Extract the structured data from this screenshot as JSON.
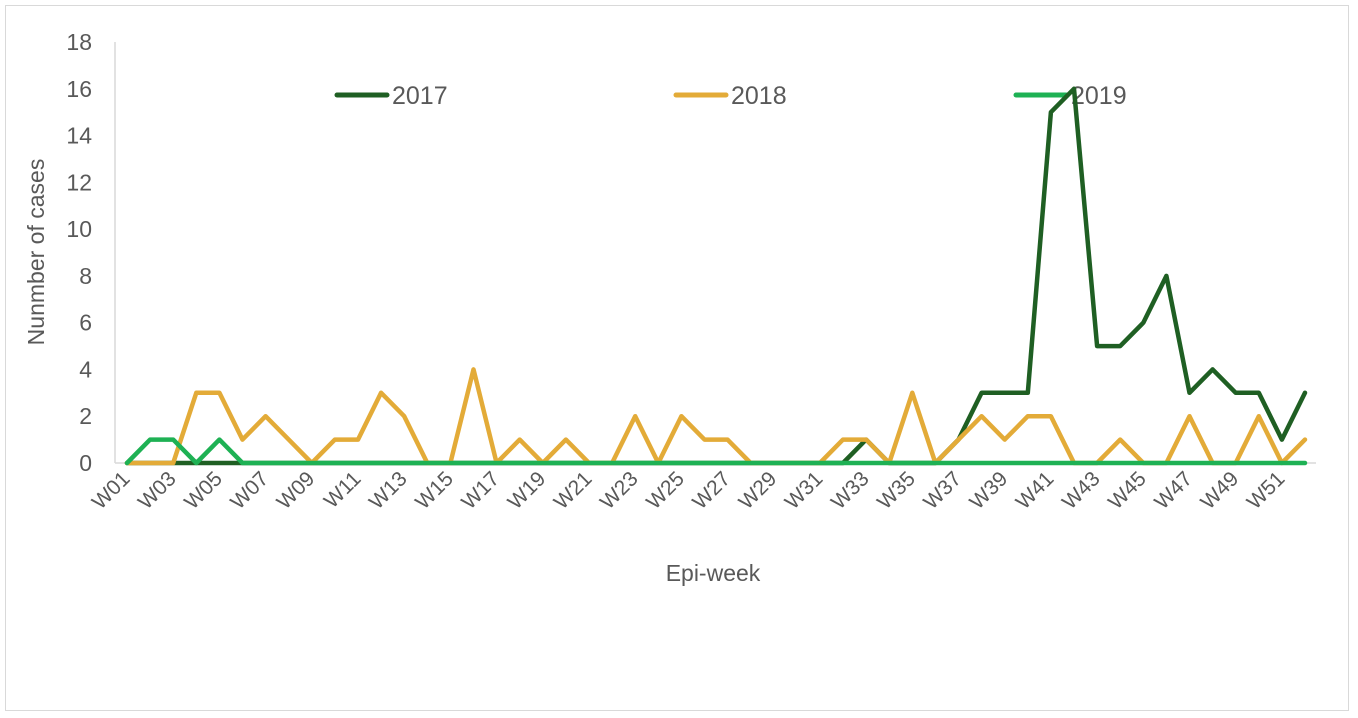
{
  "chart_data": {
    "type": "line",
    "title": "",
    "xlabel": "Epi-week",
    "ylabel": "Nunmber of cases",
    "ylim": [
      0,
      18
    ],
    "yticks": [
      0,
      2,
      4,
      6,
      8,
      10,
      12,
      14,
      16,
      18
    ],
    "grid": false,
    "legend_position": "top",
    "x": [
      "W01",
      "W02",
      "W03",
      "W04",
      "W05",
      "W06",
      "W07",
      "W08",
      "W09",
      "W10",
      "W11",
      "W12",
      "W13",
      "W14",
      "W15",
      "W16",
      "W17",
      "W18",
      "W19",
      "W20",
      "W21",
      "W22",
      "W23",
      "W24",
      "W25",
      "W26",
      "W27",
      "W28",
      "W29",
      "W30",
      "W31",
      "W32",
      "W33",
      "W34",
      "W35",
      "W36",
      "W37",
      "W38",
      "W39",
      "W40",
      "W41",
      "W42",
      "W43",
      "W44",
      "W45",
      "W46",
      "W47",
      "W48",
      "W49",
      "W50",
      "W51",
      "W52"
    ],
    "x_tick_labels": [
      "W01",
      "W03",
      "W05",
      "W07",
      "W09",
      "W11",
      "W13",
      "W15",
      "W17",
      "W19",
      "W21",
      "W23",
      "W25",
      "W27",
      "W29",
      "W31",
      "W33",
      "W35",
      "W37",
      "W39",
      "W41",
      "W43",
      "W45",
      "W47",
      "W49",
      "W51"
    ],
    "series": [
      {
        "name": "2017",
        "color": "#1f5f23",
        "values": [
          0,
          0,
          0,
          0,
          0,
          0,
          0,
          0,
          0,
          0,
          0,
          0,
          0,
          0,
          0,
          0,
          0,
          0,
          0,
          0,
          0,
          0,
          0,
          0,
          0,
          0,
          0,
          0,
          0,
          0,
          0,
          0,
          1,
          0,
          0,
          0,
          1,
          3,
          3,
          3,
          15,
          16,
          5,
          5,
          6,
          8,
          3,
          4,
          3,
          3,
          1,
          3
        ]
      },
      {
        "name": "2018",
        "color": "#e3ab38",
        "values": [
          0,
          0,
          0,
          3,
          3,
          1,
          2,
          1,
          0,
          1,
          1,
          3,
          2,
          0,
          0,
          4,
          0,
          1,
          0,
          1,
          0,
          0,
          2,
          0,
          2,
          1,
          1,
          0,
          0,
          0,
          0,
          1,
          1,
          0,
          3,
          0,
          1,
          2,
          1,
          2,
          2,
          0,
          0,
          1,
          0,
          0,
          2,
          0,
          0,
          2,
          0,
          1
        ]
      },
      {
        "name": "2019",
        "color": "#1eb154",
        "values": [
          0,
          1,
          1,
          0,
          1,
          0,
          0,
          0,
          0,
          0,
          0,
          0,
          0,
          0,
          0,
          0,
          0,
          0,
          0,
          0,
          0,
          0,
          0,
          0,
          0,
          0,
          0,
          0,
          0,
          0,
          0,
          0,
          0,
          0,
          0,
          0,
          0,
          0,
          0,
          0,
          0,
          0,
          0,
          0,
          0,
          0,
          0,
          0,
          0,
          0,
          0,
          0
        ]
      }
    ]
  }
}
